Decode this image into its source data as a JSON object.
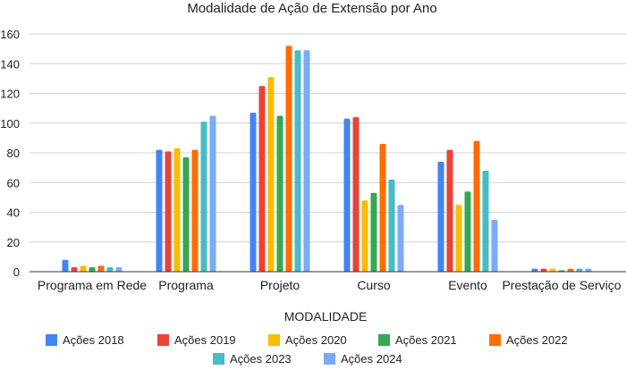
{
  "chart_data": {
    "type": "bar",
    "title": "Modalidade de Ação de Extensão por Ano",
    "xlabel": "MODALIDADE",
    "ylabel": "",
    "ylim": [
      0,
      160
    ],
    "yticks": [
      0,
      20,
      40,
      60,
      80,
      100,
      120,
      140,
      160
    ],
    "grid": true,
    "legend_position": "bottom",
    "categories": [
      "Programa em Rede",
      "Programa",
      "Projeto",
      "Curso",
      "Evento",
      "Prestação de Serviço"
    ],
    "series": [
      {
        "name": "Ações 2018",
        "color": "#4285F4",
        "values": [
          8,
          82,
          107,
          103,
          74,
          2
        ]
      },
      {
        "name": "Ações 2019",
        "color": "#EA4335",
        "values": [
          3,
          81,
          125,
          104,
          82,
          2
        ]
      },
      {
        "name": "Ações 2020",
        "color": "#FBBC04",
        "values": [
          4,
          83,
          131,
          48,
          45,
          2
        ]
      },
      {
        "name": "Ações 2021",
        "color": "#34A853",
        "values": [
          3,
          77,
          105,
          53,
          54,
          1
        ]
      },
      {
        "name": "Ações 2022",
        "color": "#FF6D01",
        "values": [
          4,
          82,
          152,
          86,
          88,
          2
        ]
      },
      {
        "name": "Ações 2023",
        "color": "#46BDC6",
        "values": [
          3,
          101,
          149,
          62,
          68,
          2
        ]
      },
      {
        "name": "Ações 2024",
        "color": "#7BAAF7",
        "values": [
          3,
          105,
          149,
          45,
          35,
          2
        ]
      }
    ]
  }
}
